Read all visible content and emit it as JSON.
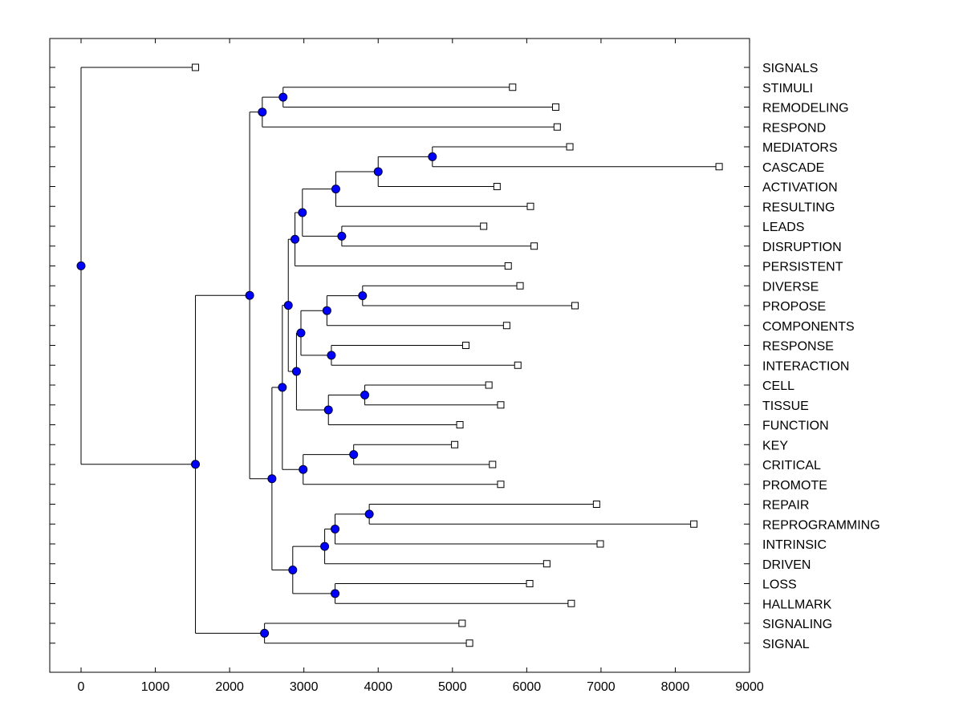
{
  "chart_data": {
    "type": "dendrogram",
    "title": "",
    "xlabel": "",
    "ylabel": "",
    "xlim": [
      -420,
      9000
    ],
    "x_ticks": [
      0,
      1000,
      2000,
      3000,
      4000,
      5000,
      6000,
      7000,
      8000,
      9000
    ],
    "x_tick_labels": [
      "0",
      "1000",
      "2000",
      "3000",
      "4000",
      "5000",
      "6000",
      "7000",
      "8000",
      "9000"
    ],
    "leaves": [
      {
        "label": "SIGNALS",
        "value": 1540
      },
      {
        "label": "STIMULI",
        "value": 5810
      },
      {
        "label": "REMODELING",
        "value": 6390
      },
      {
        "label": "RESPOND",
        "value": 6410
      },
      {
        "label": "MEDIATORS",
        "value": 6580
      },
      {
        "label": "CASCADE",
        "value": 8590
      },
      {
        "label": "ACTIVATION",
        "value": 5600
      },
      {
        "label": "RESULTING",
        "value": 6050
      },
      {
        "label": "LEADS",
        "value": 5420
      },
      {
        "label": "DISRUPTION",
        "value": 6100
      },
      {
        "label": "PERSISTENT",
        "value": 5750
      },
      {
        "label": "DIVERSE",
        "value": 5910
      },
      {
        "label": "PROPOSE",
        "value": 6650
      },
      {
        "label": "COMPONENTS",
        "value": 5730
      },
      {
        "label": "RESPONSE",
        "value": 5180
      },
      {
        "label": "INTERACTION",
        "value": 5880
      },
      {
        "label": "CELL",
        "value": 5490
      },
      {
        "label": "TISSUE",
        "value": 5650
      },
      {
        "label": "FUNCTION",
        "value": 5100
      },
      {
        "label": "KEY",
        "value": 5030
      },
      {
        "label": "CRITICAL",
        "value": 5540
      },
      {
        "label": "PROMOTE",
        "value": 5650
      },
      {
        "label": "REPAIR",
        "value": 6940
      },
      {
        "label": "REPROGRAMMING",
        "value": 8250
      },
      {
        "label": "INTRINSIC",
        "value": 6990
      },
      {
        "label": "DRIVEN",
        "value": 6270
      },
      {
        "label": "LOSS",
        "value": 6040
      },
      {
        "label": "HALLMARK",
        "value": 6600
      },
      {
        "label": "SIGNALING",
        "value": 5130
      },
      {
        "label": "SIGNAL",
        "value": 5230
      }
    ],
    "merges": [
      {
        "id": "n1",
        "value": 2720,
        "children": [
          "STIMULI",
          "REMODELING"
        ]
      },
      {
        "id": "n2",
        "value": 2440,
        "children": [
          "n1",
          "RESPOND"
        ]
      },
      {
        "id": "n3",
        "value": 4730,
        "children": [
          "MEDIATORS",
          "CASCADE"
        ]
      },
      {
        "id": "n4",
        "value": 4000,
        "children": [
          "n3",
          "ACTIVATION"
        ]
      },
      {
        "id": "n5",
        "value": 3430,
        "children": [
          "n4",
          "RESULTING"
        ]
      },
      {
        "id": "n6",
        "value": 3510,
        "children": [
          "LEADS",
          "DISRUPTION"
        ]
      },
      {
        "id": "n7",
        "value": 2980,
        "children": [
          "n5",
          "n6"
        ]
      },
      {
        "id": "n8",
        "value": 2880,
        "children": [
          "n7",
          "PERSISTENT"
        ]
      },
      {
        "id": "n9",
        "value": 3790,
        "children": [
          "DIVERSE",
          "PROPOSE"
        ]
      },
      {
        "id": "n10",
        "value": 3310,
        "children": [
          "n9",
          "COMPONENTS"
        ]
      },
      {
        "id": "n11",
        "value": 3370,
        "children": [
          "RESPONSE",
          "INTERACTION"
        ]
      },
      {
        "id": "n12",
        "value": 2960,
        "children": [
          "n10",
          "n11"
        ]
      },
      {
        "id": "n13",
        "value": 3820,
        "children": [
          "CELL",
          "TISSUE"
        ]
      },
      {
        "id": "n14",
        "value": 3330,
        "children": [
          "n13",
          "FUNCTION"
        ]
      },
      {
        "id": "n15",
        "value": 2900,
        "children": [
          "n12",
          "n14"
        ]
      },
      {
        "id": "n16",
        "value": 2790,
        "children": [
          "n8",
          "n15"
        ]
      },
      {
        "id": "n17",
        "value": 3670,
        "children": [
          "KEY",
          "CRITICAL"
        ]
      },
      {
        "id": "n18",
        "value": 2990,
        "children": [
          "n17",
          "PROMOTE"
        ]
      },
      {
        "id": "n19",
        "value": 2710,
        "children": [
          "n16",
          "n18"
        ]
      },
      {
        "id": "n20",
        "value": 3880,
        "children": [
          "REPAIR",
          "REPROGRAMMING"
        ]
      },
      {
        "id": "n21",
        "value": 3420,
        "children": [
          "n20",
          "INTRINSIC"
        ]
      },
      {
        "id": "n22",
        "value": 3280,
        "children": [
          "n21",
          "DRIVEN"
        ]
      },
      {
        "id": "n23",
        "value": 3420,
        "children": [
          "LOSS",
          "HALLMARK"
        ]
      },
      {
        "id": "n24",
        "value": 2850,
        "children": [
          "n22",
          "n23"
        ]
      },
      {
        "id": "n25",
        "value": 2570,
        "children": [
          "n19",
          "n24"
        ]
      },
      {
        "id": "n26",
        "value": 2270,
        "children": [
          "n2",
          "n25"
        ]
      },
      {
        "id": "n27",
        "value": 2470,
        "children": [
          "SIGNALING",
          "SIGNAL"
        ]
      },
      {
        "id": "n28",
        "value": 1540,
        "children": [
          "n26",
          "n27"
        ]
      },
      {
        "id": "n29",
        "value": 0,
        "children": [
          "SIGNALS",
          "n28"
        ]
      }
    ],
    "colors": {
      "node_fill": "#0000ff",
      "node_stroke": "#000033",
      "leaf_fill": "#ffffff",
      "line": "#000000"
    }
  }
}
